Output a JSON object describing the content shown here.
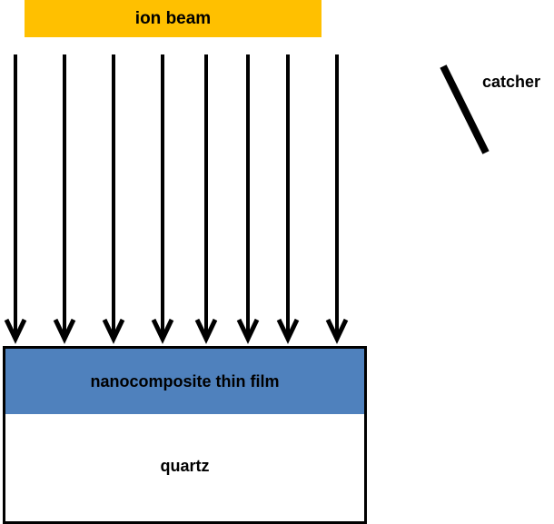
{
  "labels": {
    "beam": "ion beam",
    "film": "nanocomposite thin film",
    "substrate": "quartz",
    "catcher": "catcher"
  },
  "colors": {
    "beam": "#FFC000",
    "film": "#4F81BD",
    "substrate": "#FFFFFF",
    "lines": "#000000"
  },
  "arrow_count": 8
}
